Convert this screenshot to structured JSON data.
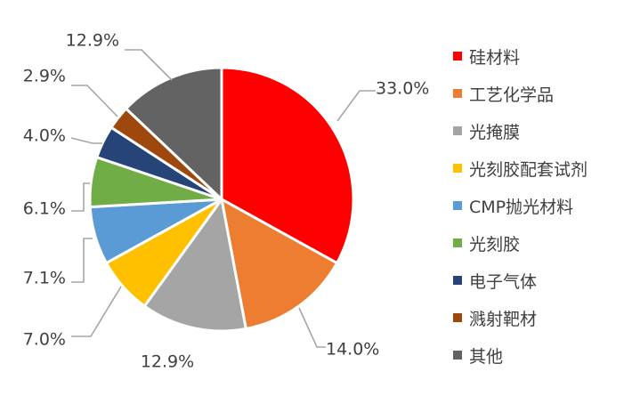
{
  "chart_data": {
    "type": "pie",
    "title": "",
    "categories": [
      "硅材料",
      "工艺化学品",
      "光掩膜",
      "光刻胶配套试剂",
      "CMP抛光材料",
      "光刻胶",
      "电子气体",
      "溅射靶材",
      "其他"
    ],
    "values": [
      33.0,
      14.0,
      12.9,
      7.0,
      7.1,
      6.1,
      4.0,
      2.9,
      12.9
    ],
    "labels": [
      "33.0%",
      "14.0%",
      "12.9%",
      "7.0%",
      "7.1%",
      "6.1%",
      "4.0%",
      "2.9%",
      "12.9%"
    ],
    "colors": [
      "#ff0000",
      "#ed7d31",
      "#a5a5a5",
      "#ffc000",
      "#5b9bd5",
      "#70ad47",
      "#264478",
      "#9e480e",
      "#636363"
    ],
    "start_angle": "12 o'clock",
    "direction": "clockwise",
    "legend_position": "right"
  }
}
